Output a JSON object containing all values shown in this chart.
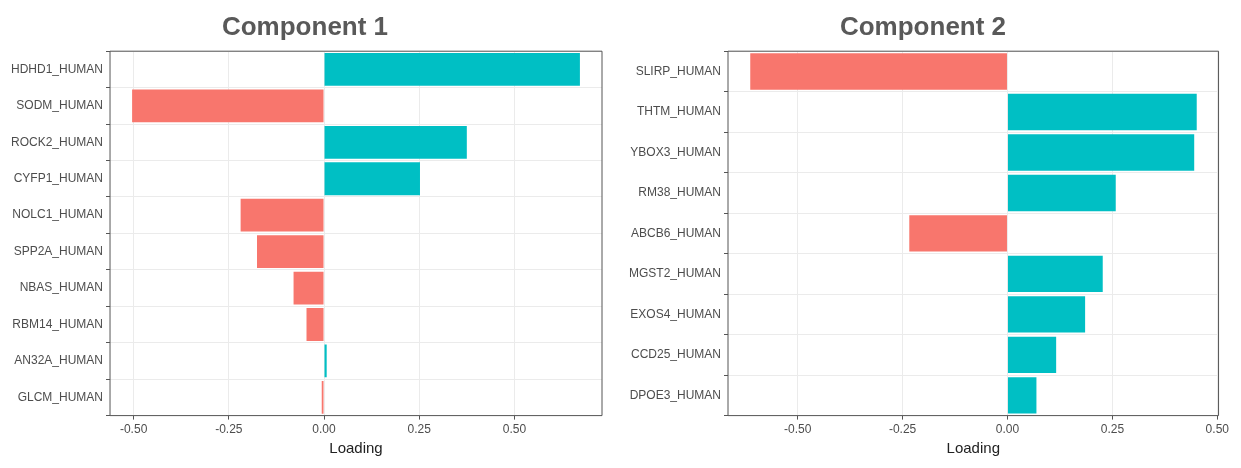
{
  "chart_data": [
    {
      "type": "bar",
      "orientation": "horizontal",
      "title": "Component 1",
      "xlabel": "Loading",
      "categories": [
        "HDHD1_HUMAN",
        "SODM_HUMAN",
        "ROCK2_HUMAN",
        "CYFP1_HUMAN",
        "NOLC1_HUMAN",
        "SPP2A_HUMAN",
        "NBAS_HUMAN",
        "RBM14_HUMAN",
        "AN32A_HUMAN",
        "GLCM_HUMAN"
      ],
      "values": [
        0.672,
        -0.504,
        0.375,
        0.252,
        -0.219,
        -0.176,
        -0.08,
        -0.046,
        0.007,
        -0.006
      ],
      "colors": [
        "#00bfc4",
        "#f8766d",
        "#00bfc4",
        "#00bfc4",
        "#f8766d",
        "#f8766d",
        "#f8766d",
        "#f8766d",
        "#00bfc4",
        "#f8766d"
      ],
      "xlim": [
        -0.562,
        0.73
      ],
      "xticks": [
        {
          "value": -0.5,
          "label": "-0.50"
        },
        {
          "value": -0.25,
          "label": "-0.25"
        },
        {
          "value": 0,
          "label": "0.00"
        },
        {
          "value": 0.25,
          "label": "0.25"
        },
        {
          "value": 0.5,
          "label": "0.50"
        }
      ],
      "grid": true,
      "legend": false
    },
    {
      "type": "bar",
      "orientation": "horizontal",
      "title": "Component 2",
      "xlabel": "Loading",
      "categories": [
        "SLIRP_HUMAN",
        "THTM_HUMAN",
        "YBOX3_HUMAN",
        "RM38_HUMAN",
        "ABCB6_HUMAN",
        "MGST2_HUMAN",
        "EXOS4_HUMAN",
        "CCD25_HUMAN",
        "DPOE3_HUMAN"
      ],
      "values": [
        -0.613,
        0.451,
        0.445,
        0.258,
        -0.234,
        0.227,
        0.185,
        0.116,
        0.069
      ],
      "colors": [
        "#f8766d",
        "#00bfc4",
        "#00bfc4",
        "#00bfc4",
        "#f8766d",
        "#00bfc4",
        "#00bfc4",
        "#00bfc4",
        "#00bfc4"
      ],
      "xlim": [
        -0.666,
        0.503
      ],
      "xticks": [
        {
          "value": -0.5,
          "label": "-0.50"
        },
        {
          "value": -0.25,
          "label": "-0.25"
        },
        {
          "value": 0,
          "label": "0.00"
        },
        {
          "value": 0.25,
          "label": "0.25"
        },
        {
          "value": 0.5,
          "label": "0.50"
        }
      ],
      "grid": true,
      "legend": false
    }
  ]
}
